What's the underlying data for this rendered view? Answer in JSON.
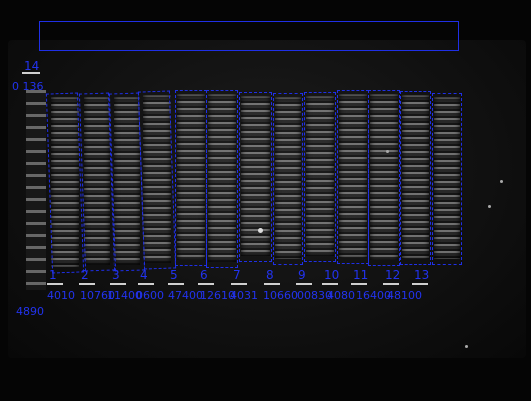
{
  "title_box_text": "",
  "bg_label": "14",
  "bg_value": "0 136",
  "ladder_value": "4890",
  "lanes": [
    {
      "num": "1",
      "value": "4010"
    },
    {
      "num": "2",
      "value": "10760"
    },
    {
      "num": "3",
      "value": "11400"
    },
    {
      "num": "4",
      "value": "0600"
    },
    {
      "num": "5",
      "value": "47400"
    },
    {
      "num": "6",
      "value": "12610"
    },
    {
      "num": "7",
      "value": "4031"
    },
    {
      "num": "8",
      "value": "10660"
    },
    {
      "num": "9",
      "value": "00830"
    },
    {
      "num": "10",
      "value": "4080"
    },
    {
      "num": "11",
      "value": "16400"
    },
    {
      "num": "12",
      "value": "48100"
    },
    {
      "num": "13",
      "value": ""
    }
  ],
  "colors": {
    "roi": "#1f2fe6",
    "label": "#2233ee"
  }
}
